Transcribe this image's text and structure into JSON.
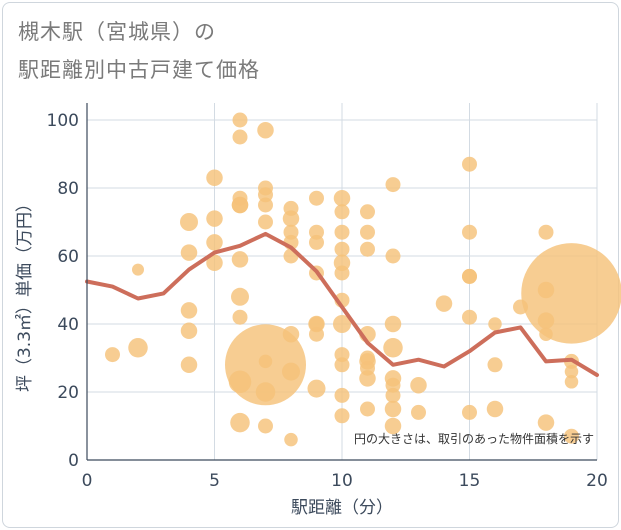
{
  "title_line1": "槻木駅（宮城県）の",
  "title_line2": "駅距離別中古戸建て価格",
  "chart_data": {
    "type": "scatter",
    "title": "槻木駅（宮城県）の駅距離別中古戸建て価格",
    "xlabel": "駅距離（分）",
    "ylabel": "坪（3.3㎡）単価（万円）",
    "xlim": [
      0,
      20
    ],
    "ylim": [
      0,
      105
    ],
    "xticks": [
      0,
      5,
      10,
      15,
      20
    ],
    "yticks": [
      0,
      20,
      40,
      60,
      80,
      100
    ],
    "grid": true,
    "annotation": "円の大きさは、取引のあった物件面積を示す",
    "colors": {
      "point": "#f5c27a",
      "line": "#cd6e5b",
      "grid": "#d3dbe3",
      "text": "#3c4a5c"
    },
    "points": [
      {
        "x": 1,
        "y": 31,
        "s": 1
      },
      {
        "x": 2,
        "y": 33,
        "s": 1.3
      },
      {
        "x": 2,
        "y": 56,
        "s": 0.8
      },
      {
        "x": 4,
        "y": 28,
        "s": 1.1
      },
      {
        "x": 4,
        "y": 38,
        "s": 1.1
      },
      {
        "x": 4,
        "y": 44,
        "s": 1.1
      },
      {
        "x": 4,
        "y": 61,
        "s": 1.1
      },
      {
        "x": 4,
        "y": 70,
        "s": 1.2
      },
      {
        "x": 5,
        "y": 58,
        "s": 1.1
      },
      {
        "x": 5,
        "y": 64,
        "s": 1.1
      },
      {
        "x": 5,
        "y": 71,
        "s": 1.1
      },
      {
        "x": 5,
        "y": 83,
        "s": 1.1
      },
      {
        "x": 6,
        "y": 11,
        "s": 1.3
      },
      {
        "x": 6,
        "y": 23,
        "s": 1.5
      },
      {
        "x": 6,
        "y": 42,
        "s": 1
      },
      {
        "x": 6,
        "y": 48,
        "s": 1.2
      },
      {
        "x": 6,
        "y": 59,
        "s": 1.1
      },
      {
        "x": 6,
        "y": 75,
        "s": 1.1
      },
      {
        "x": 6,
        "y": 75,
        "s": 1.1
      },
      {
        "x": 6,
        "y": 77,
        "s": 1
      },
      {
        "x": 6,
        "y": 95,
        "s": 1
      },
      {
        "x": 6,
        "y": 100,
        "s": 1
      },
      {
        "x": 7,
        "y": 28,
        "s": 5.4
      },
      {
        "x": 7,
        "y": 10,
        "s": 1
      },
      {
        "x": 7,
        "y": 20,
        "s": 1.3
      },
      {
        "x": 7,
        "y": 29,
        "s": 0.9
      },
      {
        "x": 7,
        "y": 70,
        "s": 1
      },
      {
        "x": 7,
        "y": 75,
        "s": 1
      },
      {
        "x": 7,
        "y": 78,
        "s": 1
      },
      {
        "x": 7,
        "y": 80,
        "s": 1
      },
      {
        "x": 7,
        "y": 97,
        "s": 1.1
      },
      {
        "x": 8,
        "y": 6,
        "s": 0.9
      },
      {
        "x": 8,
        "y": 26,
        "s": 1.2
      },
      {
        "x": 8,
        "y": 37,
        "s": 1.1
      },
      {
        "x": 8,
        "y": 60,
        "s": 1
      },
      {
        "x": 8,
        "y": 64,
        "s": 1
      },
      {
        "x": 8,
        "y": 67,
        "s": 1
      },
      {
        "x": 8,
        "y": 71,
        "s": 1.1
      },
      {
        "x": 8,
        "y": 74,
        "s": 1
      },
      {
        "x": 9,
        "y": 21,
        "s": 1.2
      },
      {
        "x": 9,
        "y": 37,
        "s": 1
      },
      {
        "x": 9,
        "y": 40,
        "s": 1.1
      },
      {
        "x": 9,
        "y": 40,
        "s": 1
      },
      {
        "x": 9,
        "y": 55,
        "s": 1
      },
      {
        "x": 9,
        "y": 64,
        "s": 1
      },
      {
        "x": 9,
        "y": 67,
        "s": 1
      },
      {
        "x": 9,
        "y": 77,
        "s": 1
      },
      {
        "x": 10,
        "y": 13,
        "s": 1
      },
      {
        "x": 10,
        "y": 19,
        "s": 1
      },
      {
        "x": 10,
        "y": 28,
        "s": 1
      },
      {
        "x": 10,
        "y": 31,
        "s": 1
      },
      {
        "x": 10,
        "y": 40,
        "s": 1.2
      },
      {
        "x": 10,
        "y": 47,
        "s": 1
      },
      {
        "x": 10,
        "y": 55,
        "s": 1
      },
      {
        "x": 10,
        "y": 58,
        "s": 1.1
      },
      {
        "x": 10,
        "y": 62,
        "s": 1
      },
      {
        "x": 10,
        "y": 67,
        "s": 1
      },
      {
        "x": 10,
        "y": 73,
        "s": 1
      },
      {
        "x": 10,
        "y": 77,
        "s": 1.1
      },
      {
        "x": 11,
        "y": 15,
        "s": 1
      },
      {
        "x": 11,
        "y": 24,
        "s": 1.1
      },
      {
        "x": 11,
        "y": 27,
        "s": 1
      },
      {
        "x": 11,
        "y": 29,
        "s": 1.1
      },
      {
        "x": 11,
        "y": 30,
        "s": 1
      },
      {
        "x": 11,
        "y": 37,
        "s": 1.1
      },
      {
        "x": 11,
        "y": 62,
        "s": 1
      },
      {
        "x": 11,
        "y": 67,
        "s": 1
      },
      {
        "x": 11,
        "y": 73,
        "s": 1
      },
      {
        "x": 12,
        "y": 10,
        "s": 1.1
      },
      {
        "x": 12,
        "y": 15,
        "s": 1.1
      },
      {
        "x": 12,
        "y": 19,
        "s": 1
      },
      {
        "x": 12,
        "y": 22,
        "s": 1
      },
      {
        "x": 12,
        "y": 24,
        "s": 1.1
      },
      {
        "x": 12,
        "y": 33,
        "s": 1.3
      },
      {
        "x": 12,
        "y": 40,
        "s": 1.1
      },
      {
        "x": 12,
        "y": 60,
        "s": 1
      },
      {
        "x": 12,
        "y": 81,
        "s": 1
      },
      {
        "x": 13,
        "y": 14,
        "s": 1
      },
      {
        "x": 13,
        "y": 22,
        "s": 1.1
      },
      {
        "x": 14,
        "y": 46,
        "s": 1.1
      },
      {
        "x": 15,
        "y": 14,
        "s": 1
      },
      {
        "x": 15,
        "y": 42,
        "s": 1
      },
      {
        "x": 15,
        "y": 54,
        "s": 1
      },
      {
        "x": 15,
        "y": 54,
        "s": 1
      },
      {
        "x": 15,
        "y": 67,
        "s": 1
      },
      {
        "x": 15,
        "y": 87,
        "s": 1
      },
      {
        "x": 16,
        "y": 15,
        "s": 1.1
      },
      {
        "x": 16,
        "y": 28,
        "s": 1
      },
      {
        "x": 16,
        "y": 40,
        "s": 0.9
      },
      {
        "x": 17,
        "y": 45,
        "s": 1
      },
      {
        "x": 18,
        "y": 11,
        "s": 1.1
      },
      {
        "x": 18,
        "y": 37,
        "s": 0.9
      },
      {
        "x": 18,
        "y": 41,
        "s": 1.1
      },
      {
        "x": 18,
        "y": 50,
        "s": 1.1
      },
      {
        "x": 18,
        "y": 67,
        "s": 1
      },
      {
        "x": 19,
        "y": 49,
        "s": 6.7
      },
      {
        "x": 19,
        "y": 7,
        "s": 1
      },
      {
        "x": 19,
        "y": 23,
        "s": 0.9
      },
      {
        "x": 19,
        "y": 26,
        "s": 0.9
      },
      {
        "x": 19,
        "y": 29,
        "s": 1
      }
    ],
    "trend": [
      {
        "x": 0,
        "y": 52.5
      },
      {
        "x": 1,
        "y": 51
      },
      {
        "x": 2,
        "y": 47.5
      },
      {
        "x": 3,
        "y": 49
      },
      {
        "x": 4,
        "y": 56
      },
      {
        "x": 5,
        "y": 61
      },
      {
        "x": 6,
        "y": 63
      },
      {
        "x": 7,
        "y": 66.5
      },
      {
        "x": 8,
        "y": 62.5
      },
      {
        "x": 9,
        "y": 55.5
      },
      {
        "x": 10,
        "y": 45
      },
      {
        "x": 11,
        "y": 34.5
      },
      {
        "x": 12,
        "y": 28
      },
      {
        "x": 13,
        "y": 29.5
      },
      {
        "x": 14,
        "y": 27.5
      },
      {
        "x": 15,
        "y": 32
      },
      {
        "x": 16,
        "y": 37.5
      },
      {
        "x": 17,
        "y": 39
      },
      {
        "x": 18,
        "y": 29
      },
      {
        "x": 19,
        "y": 29.5
      },
      {
        "x": 20,
        "y": 25
      }
    ]
  }
}
